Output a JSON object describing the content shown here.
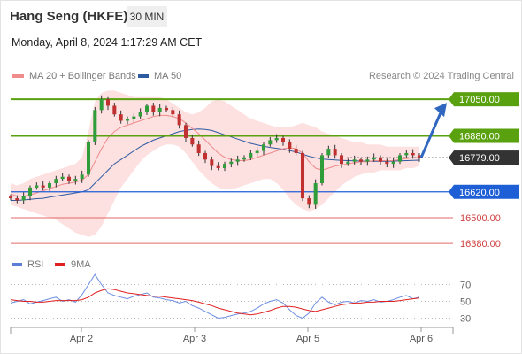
{
  "header": {
    "title": "Hang Seng (HKFE)",
    "timeframe": "30 MIN",
    "datetime": "Monday, April 8, 2024 1:17:29 AM CET"
  },
  "credit": "Research © 2024 Trading Central",
  "legend": {
    "main": [
      {
        "name": "MA 20 + Bollinger Bands",
        "color": "#f08c8c"
      },
      {
        "name": "MA 50",
        "color": "#2e5aa0"
      }
    ],
    "rsi": [
      {
        "name": "RSI",
        "color": "#5b7fd6"
      },
      {
        "name": "9MA",
        "color": "#e02020"
      }
    ]
  },
  "chart_data": [
    {
      "type": "candlestick",
      "ylim": [
        16360,
        17100
      ],
      "x_ticks": [
        "Apr 2",
        "Apr 3",
        "Apr 5",
        "Apr 6"
      ],
      "last_price": {
        "label": "16779.00",
        "value": 16779
      },
      "levels": [
        {
          "label": "17050.00",
          "value": 17050,
          "kind": "resistance",
          "color": "#5aa10f"
        },
        {
          "label": "16880.00",
          "value": 16880,
          "kind": "resistance",
          "color": "#5aa10f"
        },
        {
          "label": "16620.00",
          "value": 16620,
          "kind": "pivot",
          "color": "#1f5fd6"
        },
        {
          "label": "16500.00",
          "value": 16500,
          "kind": "support",
          "color": "#e26a6a"
        },
        {
          "label": "16380.00",
          "value": 16380,
          "kind": "support",
          "color": "#e26a6a"
        }
      ],
      "close_path": [
        16590,
        16580,
        16600,
        16640,
        16650,
        16640,
        16660,
        16680,
        16690,
        16670,
        16680,
        16700,
        16850,
        17000,
        17050,
        17020,
        16980,
        16950,
        16960,
        16970,
        16990,
        17020,
        16990,
        17010,
        17000,
        16980,
        16930,
        16870,
        16840,
        16800,
        16770,
        16740,
        16730,
        16750,
        16760,
        16770,
        16780,
        16800,
        16810,
        16840,
        16860,
        16870,
        16850,
        16820,
        16800,
        16590,
        16560,
        16660,
        16790,
        16820,
        16790,
        16750,
        16760,
        16770,
        16760,
        16770,
        16780,
        16760,
        16750,
        16760,
        16790,
        16800,
        16790,
        16779
      ],
      "ma20": [
        16610,
        16600,
        16600,
        16605,
        16615,
        16625,
        16635,
        16645,
        16655,
        16660,
        16665,
        16675,
        16700,
        16760,
        16820,
        16870,
        16900,
        16920,
        16930,
        16940,
        16950,
        16960,
        16970,
        16975,
        16975,
        16970,
        16960,
        16940,
        16915,
        16890,
        16860,
        16830,
        16800,
        16780,
        16770,
        16765,
        16765,
        16770,
        16780,
        16790,
        16800,
        16810,
        16820,
        16825,
        16820,
        16800,
        16760,
        16730,
        16720,
        16730,
        16740,
        16745,
        16750,
        16755,
        16760,
        16760,
        16765,
        16765,
        16765,
        16765,
        16770,
        16775,
        16778,
        16780
      ],
      "ma50": [
        16580,
        16580,
        16582,
        16585,
        16588,
        16590,
        16595,
        16600,
        16605,
        16610,
        16615,
        16620,
        16630,
        16660,
        16690,
        16720,
        16750,
        16770,
        16790,
        16810,
        16830,
        16845,
        16860,
        16870,
        16880,
        16890,
        16900,
        16905,
        16910,
        16912,
        16910,
        16905,
        16895,
        16885,
        16875,
        16865,
        16855,
        16845,
        16838,
        16832,
        16826,
        16822,
        16818,
        16812,
        16805,
        16795,
        16785,
        16778,
        16772,
        16770,
        16768,
        16766,
        16765,
        16764,
        16763,
        16762,
        16762,
        16762,
        16762,
        16763,
        16764,
        16765,
        16766,
        16767
      ],
      "boll_upper": [
        16660,
        16650,
        16660,
        16680,
        16690,
        16700,
        16710,
        16720,
        16730,
        16740,
        16750,
        16780,
        16900,
        17040,
        17080,
        17090,
        17090,
        17080,
        17070,
        17060,
        17060,
        17060,
        17060,
        17060,
        17050,
        17030,
        17010,
        16990,
        16980,
        16990,
        17010,
        17040,
        17050,
        17040,
        17020,
        17000,
        16980,
        16960,
        16950,
        16940,
        16930,
        16920,
        16920,
        16920,
        16930,
        16940,
        16930,
        16920,
        16900,
        16890,
        16880,
        16870,
        16860,
        16850,
        16850,
        16840,
        16840,
        16840,
        16830,
        16830,
        16830,
        16830,
        16830,
        16830
      ],
      "boll_lower": [
        16560,
        16550,
        16540,
        16530,
        16520,
        16510,
        16500,
        16490,
        16470,
        16450,
        16430,
        16420,
        16410,
        16420,
        16460,
        16520,
        16580,
        16640,
        16680,
        16720,
        16760,
        16790,
        16810,
        16830,
        16840,
        16840,
        16830,
        16800,
        16760,
        16720,
        16690,
        16660,
        16640,
        16630,
        16630,
        16640,
        16650,
        16660,
        16670,
        16680,
        16680,
        16660,
        16630,
        16590,
        16560,
        16540,
        16530,
        16540,
        16560,
        16590,
        16620,
        16650,
        16670,
        16690,
        16700,
        16710,
        16710,
        16720,
        16720,
        16720,
        16720,
        16730,
        16730,
        16740
      ],
      "projection": {
        "from": 16779,
        "to": 17050
      }
    },
    {
      "type": "line",
      "ylim": [
        20,
        80
      ],
      "y_ticks": [
        "70",
        "50",
        "30"
      ],
      "series": [
        {
          "name": "RSI",
          "values": [
            48,
            50,
            52,
            47,
            49,
            51,
            53,
            55,
            50,
            52,
            49,
            58,
            70,
            82,
            70,
            60,
            57,
            55,
            53,
            56,
            58,
            60,
            55,
            54,
            52,
            51,
            48,
            50,
            45,
            42,
            38,
            34,
            30,
            31,
            33,
            35,
            36,
            38,
            42,
            47,
            50,
            52,
            48,
            40,
            33,
            30,
            36,
            48,
            55,
            49,
            46,
            49,
            50,
            48,
            51,
            50,
            52,
            49,
            50,
            52,
            55,
            57,
            53,
            55
          ]
        },
        {
          "name": "9MA",
          "values": [
            52,
            51,
            50,
            50,
            49,
            49,
            50,
            51,
            51,
            51,
            51,
            52,
            55,
            60,
            63,
            65,
            64,
            62,
            60,
            59,
            58,
            57,
            56,
            56,
            55,
            54,
            53,
            52,
            51,
            49,
            47,
            45,
            42,
            40,
            38,
            36,
            35,
            34,
            35,
            37,
            39,
            42,
            44,
            44,
            43,
            41,
            39,
            38,
            40,
            42,
            44,
            46,
            47,
            48,
            48,
            49,
            49,
            50,
            50,
            50,
            51,
            52,
            53,
            54
          ]
        }
      ]
    }
  ]
}
